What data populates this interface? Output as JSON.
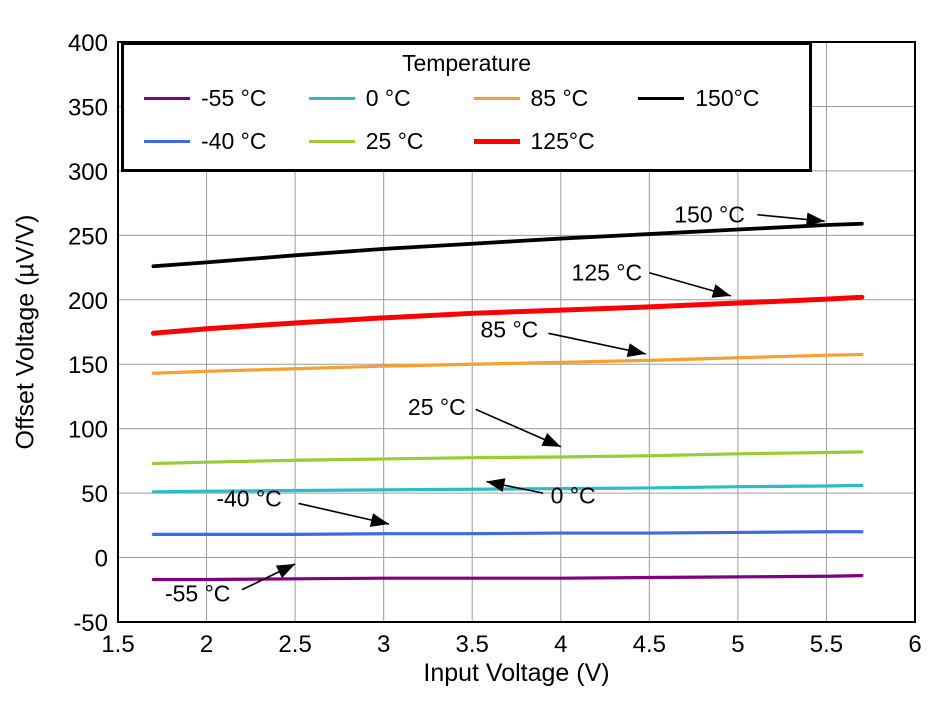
{
  "chart_data": {
    "type": "line",
    "title": "",
    "xlabel": "Input Voltage (V)",
    "ylabel": "Offset Voltage (µV/V)",
    "xlim": [
      1.5,
      6
    ],
    "ylim": [
      -50,
      400
    ],
    "xticks": [
      1.5,
      2,
      2.5,
      3,
      3.5,
      4,
      4.5,
      5,
      5.5,
      6
    ],
    "xtick_labels": [
      "1.5",
      "2",
      "2.5",
      "3",
      "3.5",
      "4",
      "4.5",
      "5",
      "5.5",
      "6"
    ],
    "yticks": [
      -50,
      0,
      50,
      100,
      150,
      200,
      250,
      300,
      350,
      400
    ],
    "ytick_labels": [
      "-50",
      "0",
      "50",
      "100",
      "150",
      "200",
      "250",
      "300",
      "350",
      "400"
    ],
    "grid": true,
    "grid_color": "#9d9d9d",
    "frame_color": "#000000",
    "legend": {
      "title": "Temperature",
      "position": "top-left",
      "entries": [
        {
          "label": "-55 °C",
          "color": "#800080",
          "width": 3.2
        },
        {
          "label": "-40 °C",
          "color": "#4169E1",
          "width": 3.2
        },
        {
          "label": "0 °C",
          "color": "#2ABEC3",
          "width": 3.2
        },
        {
          "label": "25 °C",
          "color": "#9ACD32",
          "width": 3.2
        },
        {
          "label": "85 °C",
          "color": "#F8A02D",
          "width": 3.2
        },
        {
          "label": "125°C",
          "color": "#FF0000",
          "width": 5
        },
        {
          "label": "150°C",
          "color": "#000000",
          "width": 3.8
        }
      ]
    },
    "x": [
      1.7,
      2.0,
      2.5,
      3.0,
      3.5,
      4.0,
      4.5,
      5.0,
      5.5,
      5.7
    ],
    "series": [
      {
        "name": "-55 °C",
        "color": "#800080",
        "width": 3.2,
        "values": [
          -17,
          -17,
          -16.5,
          -16,
          -16,
          -16,
          -15.5,
          -15,
          -14.5,
          -14
        ]
      },
      {
        "name": "-40 °C",
        "color": "#4169E1",
        "width": 3.2,
        "values": [
          18,
          18,
          18,
          18.5,
          18.5,
          19,
          19,
          19.5,
          20,
          20
        ]
      },
      {
        "name": "0 °C",
        "color": "#2ABEC3",
        "width": 3.2,
        "values": [
          51,
          51.5,
          52,
          52.5,
          53,
          53.5,
          54,
          55,
          55.5,
          56
        ]
      },
      {
        "name": "25 °C",
        "color": "#9ACD32",
        "width": 3.2,
        "values": [
          73,
          74,
          75.5,
          76.5,
          77.5,
          78,
          79,
          80.5,
          81.5,
          82
        ]
      },
      {
        "name": "85 °C",
        "color": "#F8A02D",
        "width": 3.2,
        "values": [
          143,
          144.5,
          146.5,
          148.5,
          150,
          151.5,
          153,
          155,
          157,
          157.5
        ]
      },
      {
        "name": "125°C",
        "color": "#FF0000",
        "width": 5,
        "values": [
          174,
          177.5,
          182,
          186,
          189.5,
          192,
          194.5,
          197.5,
          200.5,
          202
        ]
      },
      {
        "name": "150°C",
        "color": "#000000",
        "width": 3.8,
        "values": [
          226,
          229,
          234.5,
          239.5,
          243.5,
          247.5,
          251,
          254.5,
          258,
          259
        ]
      }
    ],
    "annotations": [
      {
        "label": "150 °C",
        "text": [
          4.84,
          266
        ],
        "arrow": [
          5.11,
          266,
          5.49,
          261
        ]
      },
      {
        "label": "125 °C",
        "text": [
          4.26,
          221
        ],
        "arrow": [
          4.5,
          221,
          4.96,
          203
        ]
      },
      {
        "label": "85 °C",
        "text": [
          3.71,
          177
        ],
        "arrow": [
          3.93,
          174,
          4.48,
          158
        ]
      },
      {
        "label": "25 °C",
        "text": [
          3.3,
          117
        ],
        "arrow": [
          3.52,
          115,
          4.0,
          86
        ]
      },
      {
        "label": "0 °C",
        "text": [
          4.07,
          48
        ],
        "arrow": [
          3.9,
          50,
          3.58,
          59
        ]
      },
      {
        "label": "-40 °C",
        "text": [
          2.24,
          46
        ],
        "arrow": [
          2.52,
          42,
          3.03,
          26
        ]
      },
      {
        "label": "-55 °C",
        "text": [
          1.95,
          -28
        ],
        "arrow": [
          2.2,
          -25,
          2.5,
          -5
        ]
      }
    ]
  }
}
